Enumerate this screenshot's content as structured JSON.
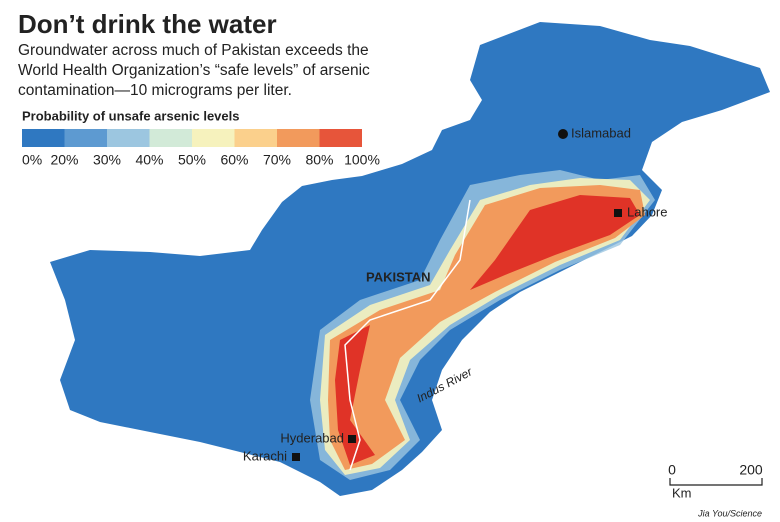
{
  "header": {
    "title": "Don’t drink the water",
    "subtitle_lines": [
      "Groundwater across much of Pakistan exceeds the",
      "World Health Organization’s “safe levels” of arsenic",
      "contamination—10 micrograms per liter."
    ]
  },
  "legend": {
    "title": "Probability of unsafe arsenic levels",
    "colors": [
      "#2f78c1",
      "#5d9ad1",
      "#9cc6e0",
      "#d2ead8",
      "#f6f2bd",
      "#fbd08c",
      "#f29a5c",
      "#e7553a"
    ],
    "labels": [
      "0%",
      "20%",
      "30%",
      "40%",
      "50%",
      "60%",
      "70%",
      "80%",
      "100%"
    ]
  },
  "places": {
    "islamabad": "Islamabad",
    "lahore": "Lahore",
    "country": "PAKISTAN",
    "river": "Indus River",
    "hyderabad": "Hyderabad",
    "karachi": "Karachi"
  },
  "scale": {
    "start": "0",
    "end": "200",
    "unit": "Km"
  },
  "credit": "Jia You/Science"
}
